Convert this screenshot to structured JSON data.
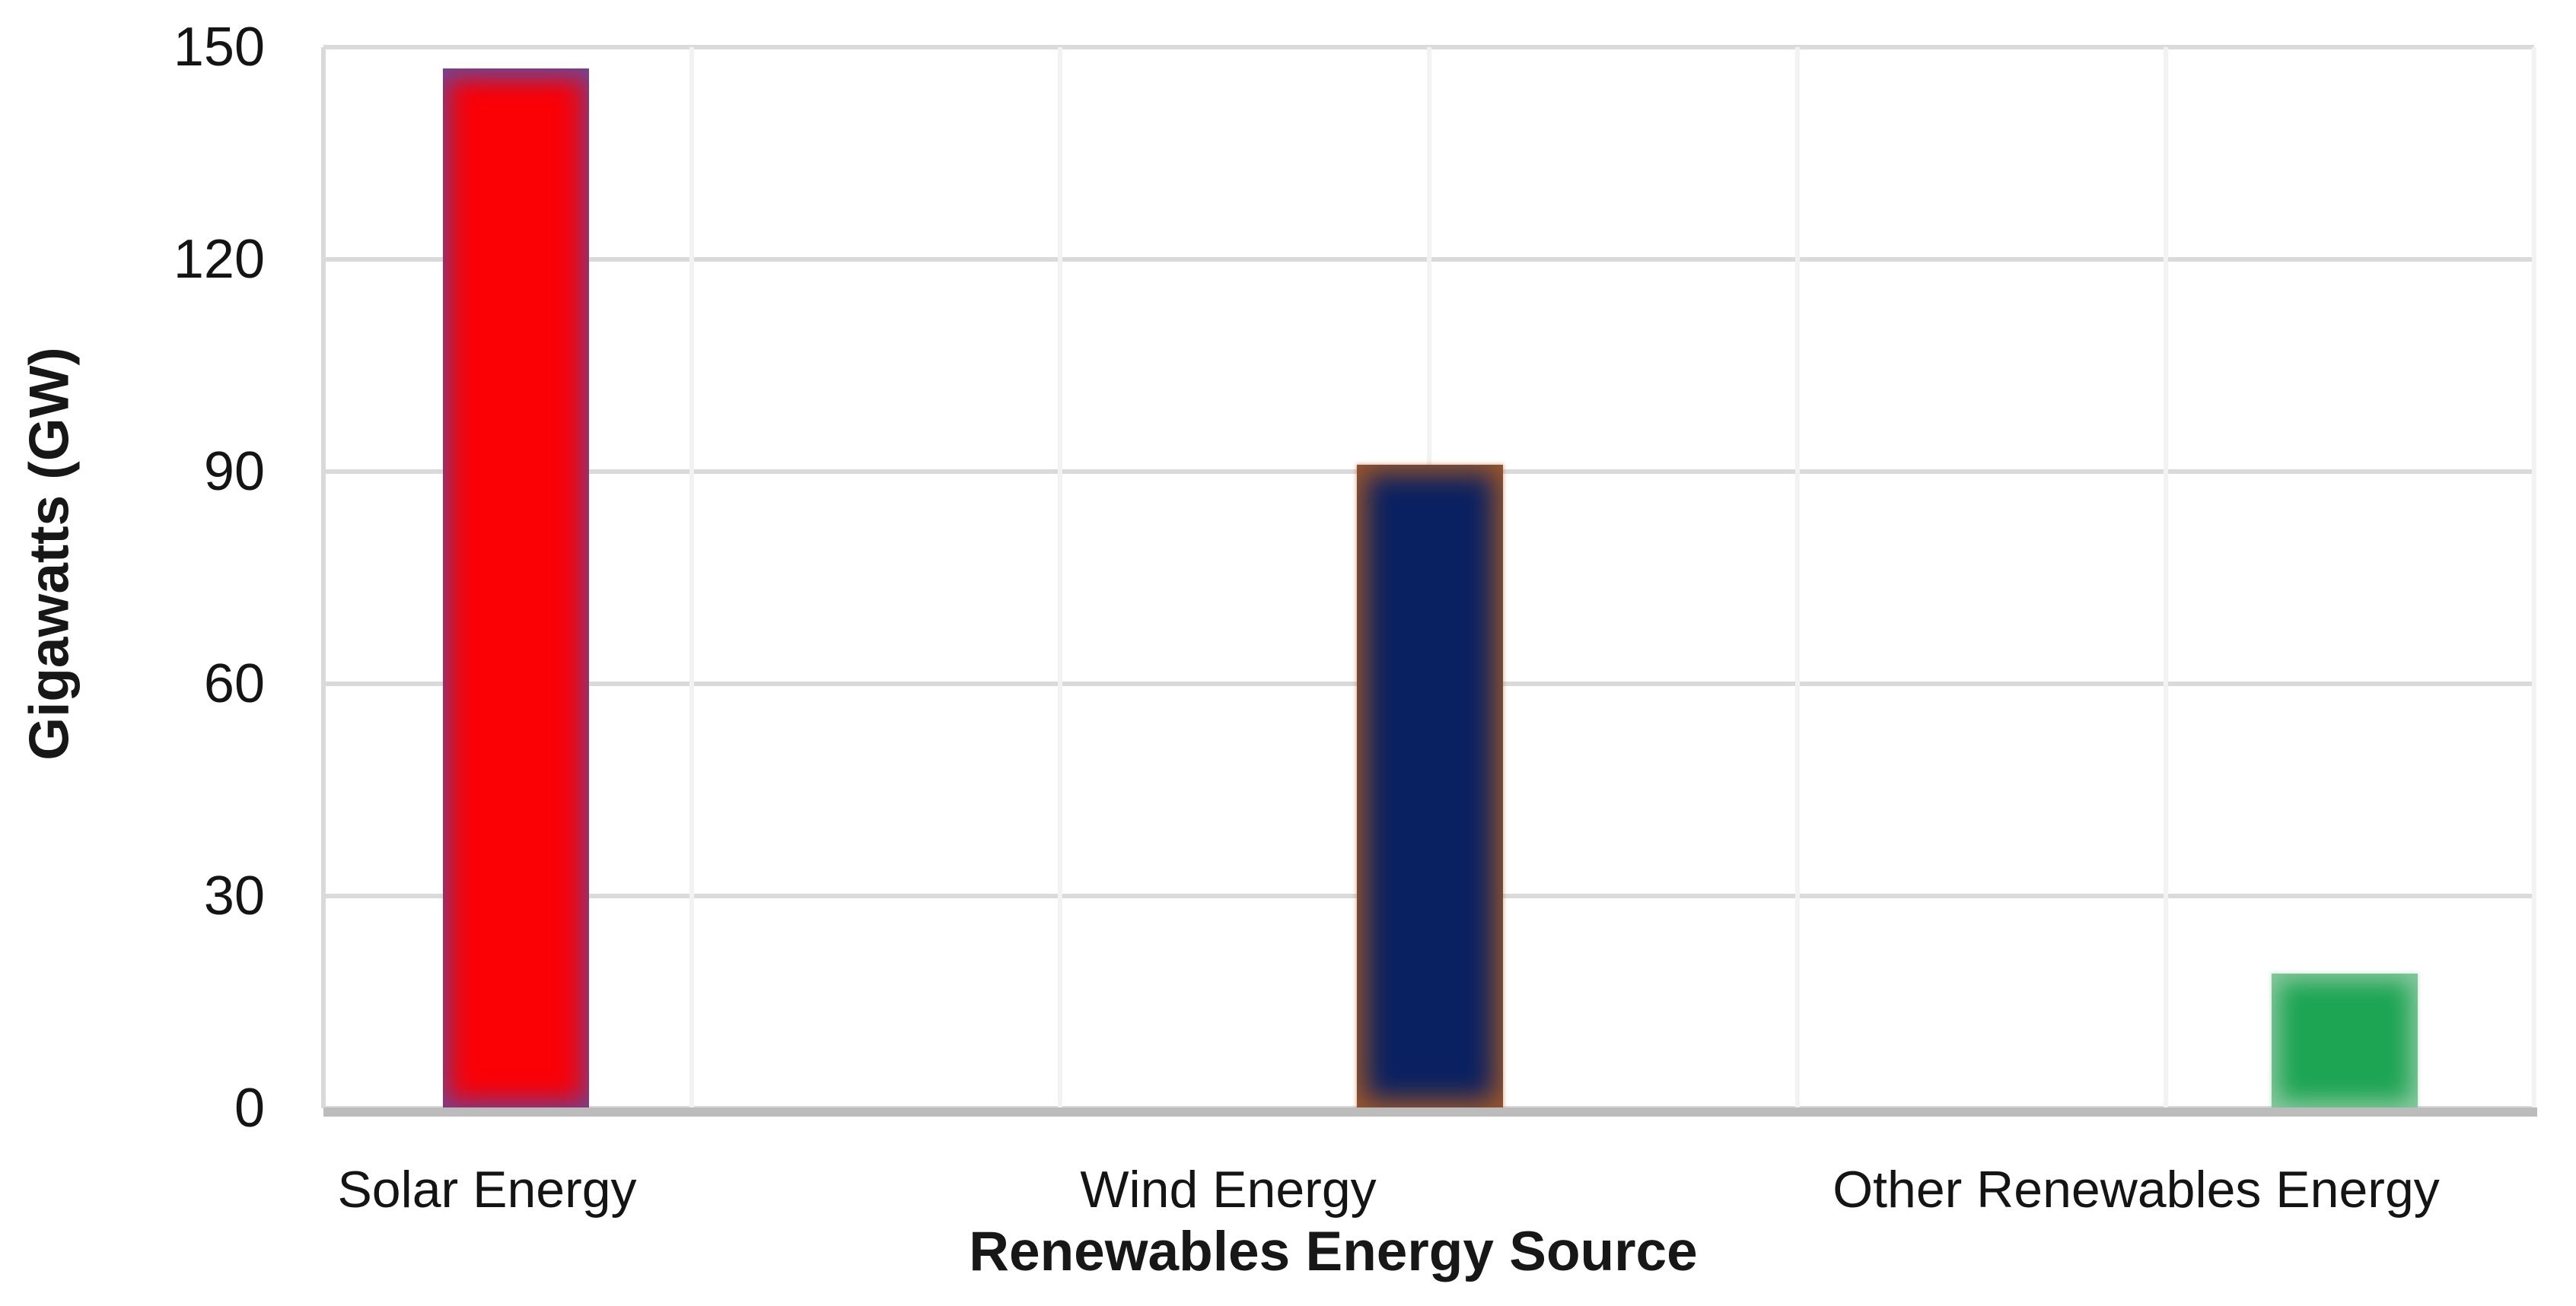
{
  "page": {
    "background": "#ffffff"
  },
  "chart_data": {
    "type": "bar",
    "title": "",
    "categories": [
      "Solar Energy",
      "Wind Energy",
      "Other Renewables Energy"
    ],
    "values": [
      147,
      91,
      19
    ],
    "bar_colors": [
      "#fb0106",
      "#0a2161",
      "#1da553"
    ],
    "bar_glow_colors": [
      "#5c52a8",
      "#b25e22",
      "#a0d0af"
    ],
    "xlabel": "Renewables Energy Source",
    "ylabel": "Gigawatts (GW)",
    "ylim": [
      0,
      150
    ],
    "yticks": [
      0,
      30,
      60,
      90,
      120,
      150
    ],
    "ytick_labels": [
      "0",
      "30",
      "60",
      "90",
      "120",
      "150"
    ],
    "grid": "horizontal major gridlines + vertical half-category gridlines",
    "gridline_color": "#dadada",
    "axis_line_color": "#bcbcbc",
    "legend": "none"
  }
}
